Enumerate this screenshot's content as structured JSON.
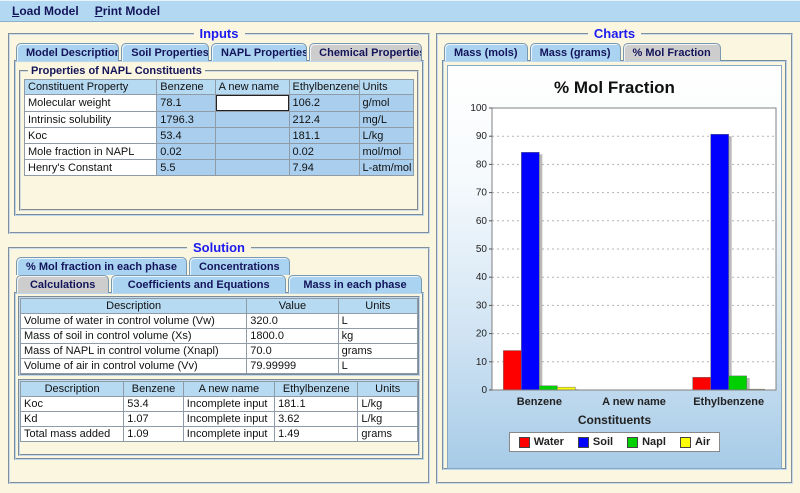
{
  "theme": {
    "accent_blue": "#1b1bf0",
    "menubar_blue": "#b3d9f2",
    "tab_blue": "#a9d3f0",
    "tab_selected_gray": "#cdcdcd",
    "table_header_blue": "#b7daf3",
    "table_cell_blue": "#aacfee",
    "background_cream": "#fbf6df"
  },
  "menu": {
    "items": [
      {
        "label": "Load Model"
      },
      {
        "label": "Print Model"
      }
    ]
  },
  "inputs_panel": {
    "title": "Inputs",
    "tabs": {
      "items": [
        "Model Description",
        "Soil Properties",
        "NAPL Properties",
        "Chemical Properties"
      ],
      "selected": 3
    },
    "group_title": "Properties of NAPL Constituents",
    "table": {
      "headers": [
        "Constituent Property",
        "Benzene",
        "A new name",
        "Ethylbenzene",
        "Units"
      ],
      "rows": [
        [
          "Molecular weight",
          "78.1",
          "",
          "106.2",
          "g/mol"
        ],
        [
          "Intrinsic solubility",
          "1796.3",
          "",
          "212.4",
          "mg/L"
        ],
        [
          "Koc",
          "53.4",
          "",
          "181.1",
          "L/kg"
        ],
        [
          "Mole fraction in NAPL",
          "0.02",
          "",
          "0.02",
          "mol/mol"
        ],
        [
          "Henry's Constant",
          "5.5",
          "",
          "7.94",
          "L-atm/mol"
        ]
      ],
      "edit_cell": {
        "row": 0,
        "col": 2,
        "value": ""
      }
    }
  },
  "solution_panel": {
    "title": "Solution",
    "tabs_row1": {
      "items": [
        "% Mol fraction in each phase",
        "Concentrations"
      ],
      "selected": -1
    },
    "tabs_row2": {
      "items": [
        "Calculations",
        "Coefficients and Equations",
        "Mass in each phase"
      ],
      "selected": 0
    },
    "calc_table": {
      "headers": [
        "Description",
        "Value",
        "Units"
      ],
      "rows": [
        [
          "Volume of water in control volume (Vw)",
          "320.0",
          "L"
        ],
        [
          "Mass of soil in control volume (Xs)",
          "1800.0",
          "kg"
        ],
        [
          "Mass of NAPL in control volume (Xnapl)",
          "70.0",
          "grams"
        ],
        [
          "Volume of air in control volume (Vv)",
          "79.99999",
          "L"
        ]
      ]
    },
    "result_table": {
      "headers": [
        "Description",
        "Benzene",
        "A new name",
        "Ethylbenzene",
        "Units"
      ],
      "rows": [
        [
          "Koc",
          "53.4",
          "Incomplete input",
          "181.1",
          "L/kg"
        ],
        [
          "Kd",
          "1.07",
          "Incomplete input",
          "3.62",
          "L/kg"
        ],
        [
          "Total mass added",
          "1.09",
          "Incomplete input",
          "1.49",
          "grams"
        ]
      ]
    }
  },
  "charts_panel": {
    "title": "Charts",
    "tabs": {
      "items": [
        "Mass (mols)",
        "Mass (grams)",
        "% Mol Fraction"
      ],
      "selected": 2
    }
  },
  "chart_data": {
    "type": "bar",
    "title": "% Mol Fraction",
    "xlabel": "Constituents",
    "ylabel": "",
    "categories": [
      "Benzene",
      "A new name",
      "Ethylbenzene"
    ],
    "series": [
      {
        "name": "Water",
        "color": "#ff0000",
        "values": [
          14,
          0,
          4.5
        ]
      },
      {
        "name": "Soil",
        "color": "#0000ff",
        "values": [
          84.3,
          0,
          90.7
        ]
      },
      {
        "name": "Napl",
        "color": "#00d000",
        "values": [
          1.5,
          0,
          5
        ]
      },
      {
        "name": "Air",
        "color": "#ffff00",
        "values": [
          1,
          0,
          0.3
        ]
      }
    ],
    "ylim": [
      0,
      100
    ],
    "ytick_step": 10,
    "grid": "dotted-horizontal",
    "legend_position": "bottom"
  }
}
